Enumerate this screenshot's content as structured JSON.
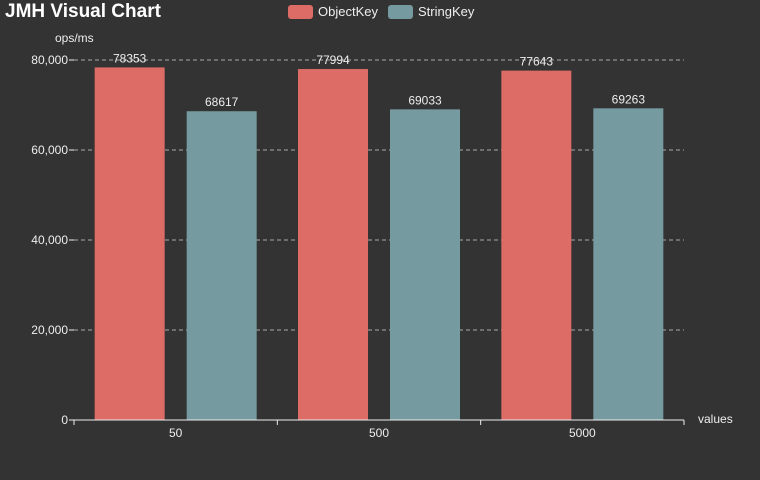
{
  "header": {
    "title": "JMH Visual Chart"
  },
  "colors": {
    "background": "#333333",
    "ObjectKey": "#dd6b66",
    "StringKey": "#759aa0",
    "axis": "#eeeeee",
    "grid": "#aaaaaa"
  },
  "chart_data": {
    "type": "bar",
    "title": "JMH Visual Chart",
    "xlabel": "values",
    "ylabel": "ops/ms",
    "categories": [
      "50",
      "500",
      "5000"
    ],
    "series": [
      {
        "name": "ObjectKey",
        "values": [
          78353,
          77994,
          77643
        ]
      },
      {
        "name": "StringKey",
        "values": [
          68617,
          69033,
          69263
        ]
      }
    ],
    "ylim": [
      0,
      80000
    ],
    "yticks": [
      "0",
      "20,000",
      "40,000",
      "60,000",
      "80,000"
    ],
    "grid": true,
    "legend": "top-center"
  }
}
